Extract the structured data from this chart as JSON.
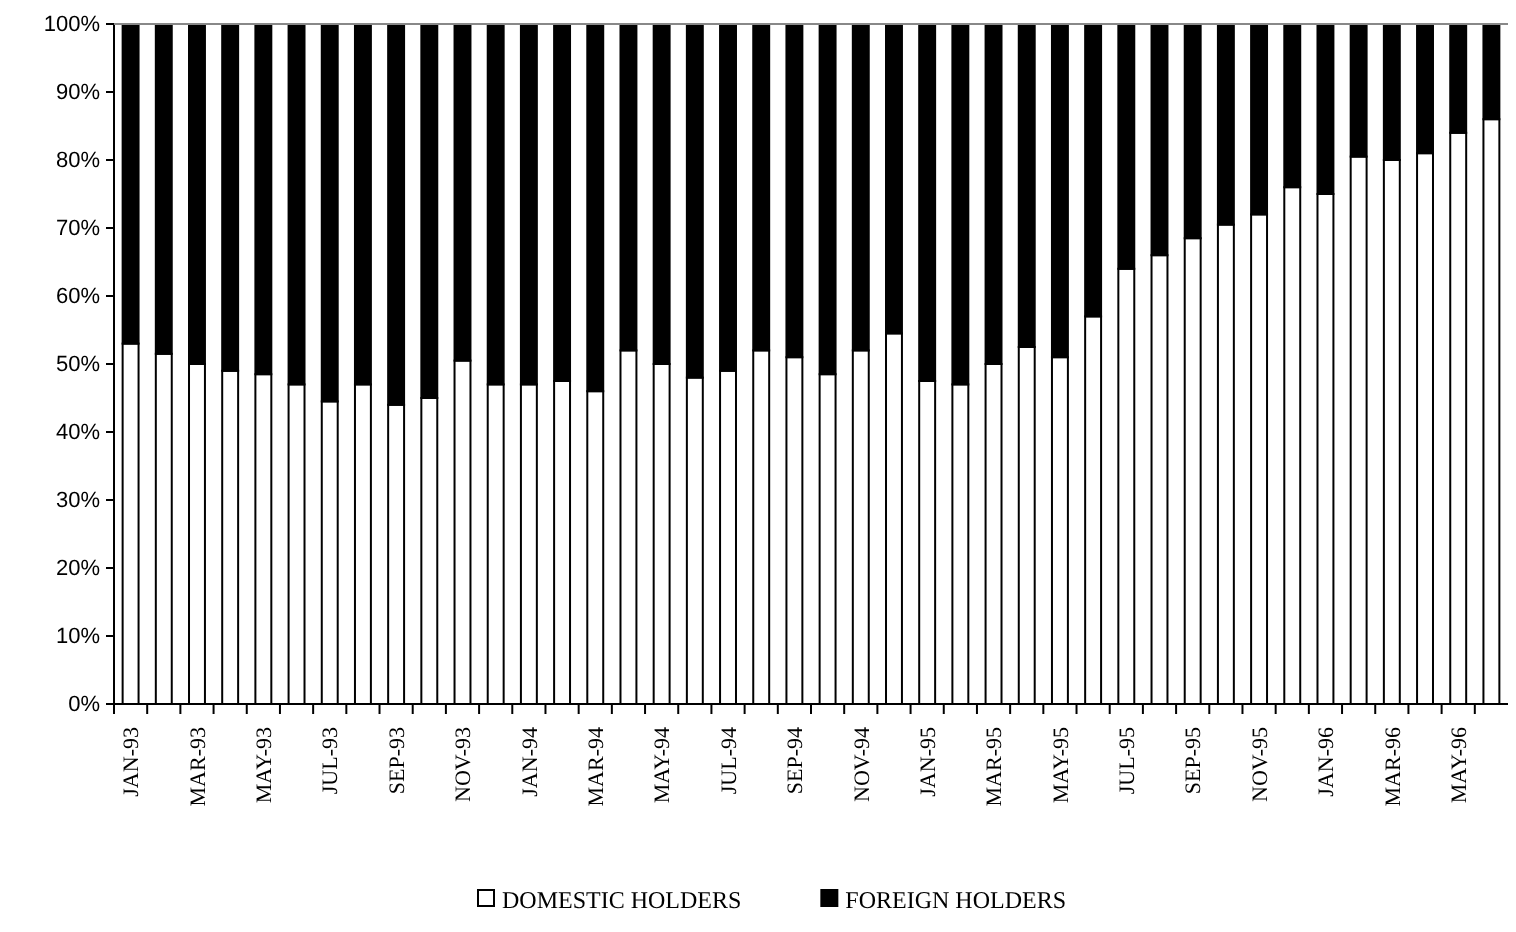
{
  "chart_data": {
    "type": "bar",
    "stacked": true,
    "categories": [
      "JAN-93",
      null,
      "MAR-93",
      null,
      "MAY-93",
      null,
      "JUL-93",
      null,
      "SEP-93",
      null,
      "NOV-93",
      null,
      "JAN-94",
      null,
      "MAR-94",
      null,
      "MAY-94",
      null,
      "JUL-94",
      null,
      "SEP-94",
      null,
      "NOV-94",
      null,
      "JAN-95",
      null,
      "MAR-95",
      null,
      "MAY-95",
      null,
      "JUL-95",
      null,
      "SEP-95",
      null,
      "NOV-95",
      null,
      "JAN-96",
      null,
      "MAR-96",
      null,
      "MAY-96",
      null
    ],
    "series": [
      {
        "name": "DOMESTIC HOLDERS",
        "color": "#ffffff",
        "values": [
          53,
          51.5,
          50,
          49,
          48.5,
          47,
          44.5,
          47,
          44,
          45,
          50.5,
          47,
          47,
          47.5,
          46,
          52,
          50,
          48,
          49,
          52,
          51,
          48.5,
          52,
          54.5,
          47.5,
          47,
          50,
          52.5,
          51,
          57,
          64,
          66,
          68.5,
          70.5,
          72,
          76,
          75,
          80.5,
          80,
          81,
          84,
          86
        ]
      },
      {
        "name": "FOREIGN HOLDERS",
        "color": "#000000",
        "values": [
          47,
          48.5,
          50,
          51,
          51.5,
          53,
          55.5,
          53,
          56,
          55,
          49.5,
          53,
          53,
          52.5,
          54,
          48,
          50,
          52,
          51,
          48,
          49,
          51.5,
          48,
          45.5,
          52.5,
          53,
          50,
          47.5,
          49,
          43,
          36,
          34,
          31.5,
          29.5,
          28,
          24,
          25,
          19.5,
          20,
          19,
          16,
          14
        ]
      }
    ],
    "ylim": [
      0,
      100
    ],
    "yticks": [
      {
        "value": 0,
        "label": "0%"
      },
      {
        "value": 10,
        "label": "10%"
      },
      {
        "value": 20,
        "label": "20%"
      },
      {
        "value": 30,
        "label": "30%"
      },
      {
        "value": 40,
        "label": "40%"
      },
      {
        "value": 50,
        "label": "50%"
      },
      {
        "value": 60,
        "label": "60%"
      },
      {
        "value": 70,
        "label": "70%"
      },
      {
        "value": 80,
        "label": "80%"
      },
      {
        "value": 90,
        "label": "90%"
      },
      {
        "value": 100,
        "label": "100%"
      }
    ],
    "legend": "bottom",
    "grid": false
  }
}
